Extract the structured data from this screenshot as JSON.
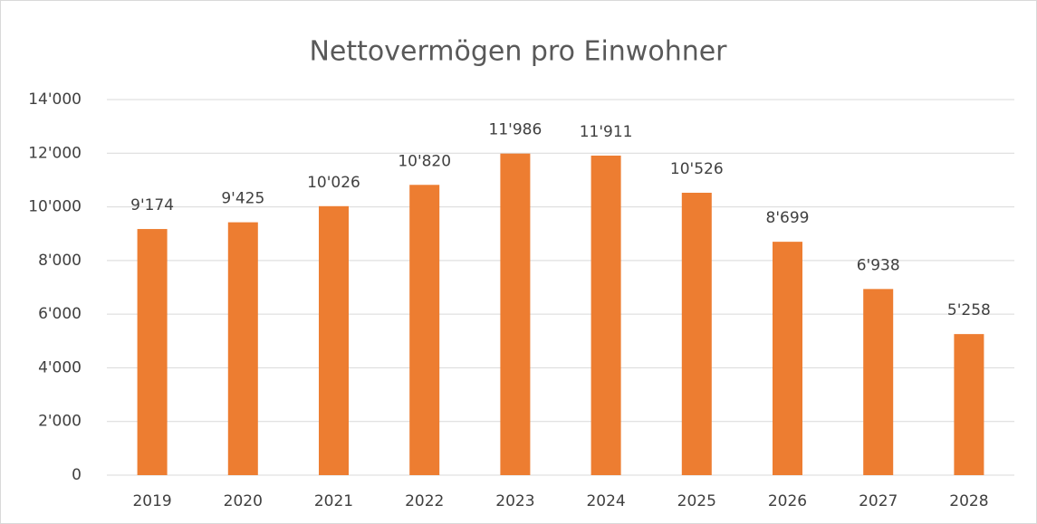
{
  "chart_data": {
    "type": "bar",
    "title": "Nettovermögen pro Einwohner",
    "categories": [
      "2019",
      "2020",
      "2021",
      "2022",
      "2023",
      "2024",
      "2025",
      "2026",
      "2027",
      "2028"
    ],
    "values": [
      9174,
      9425,
      10026,
      10820,
      11986,
      11911,
      10526,
      8699,
      6938,
      5258
    ],
    "value_labels": [
      "9'174",
      "9'425",
      "10'026",
      "10'820",
      "11'986",
      "11'911",
      "10'526",
      "8'699",
      "6'938",
      "5'258"
    ],
    "color": "#ed7d31",
    "ylim": [
      0,
      14000
    ],
    "yticks": [
      0,
      {
        "value": 2000,
        "label": "2'000"
      },
      {
        "value": 4000,
        "label": "4'000"
      },
      {
        "value": 6000,
        "label": "6'000"
      },
      {
        "value": 8000,
        "label": "8'000"
      },
      {
        "value": 10000,
        "label": "10'000"
      },
      {
        "value": 12000,
        "label": "12'000"
      },
      {
        "value": 14000,
        "label": "14'000"
      }
    ],
    "grid": true
  }
}
